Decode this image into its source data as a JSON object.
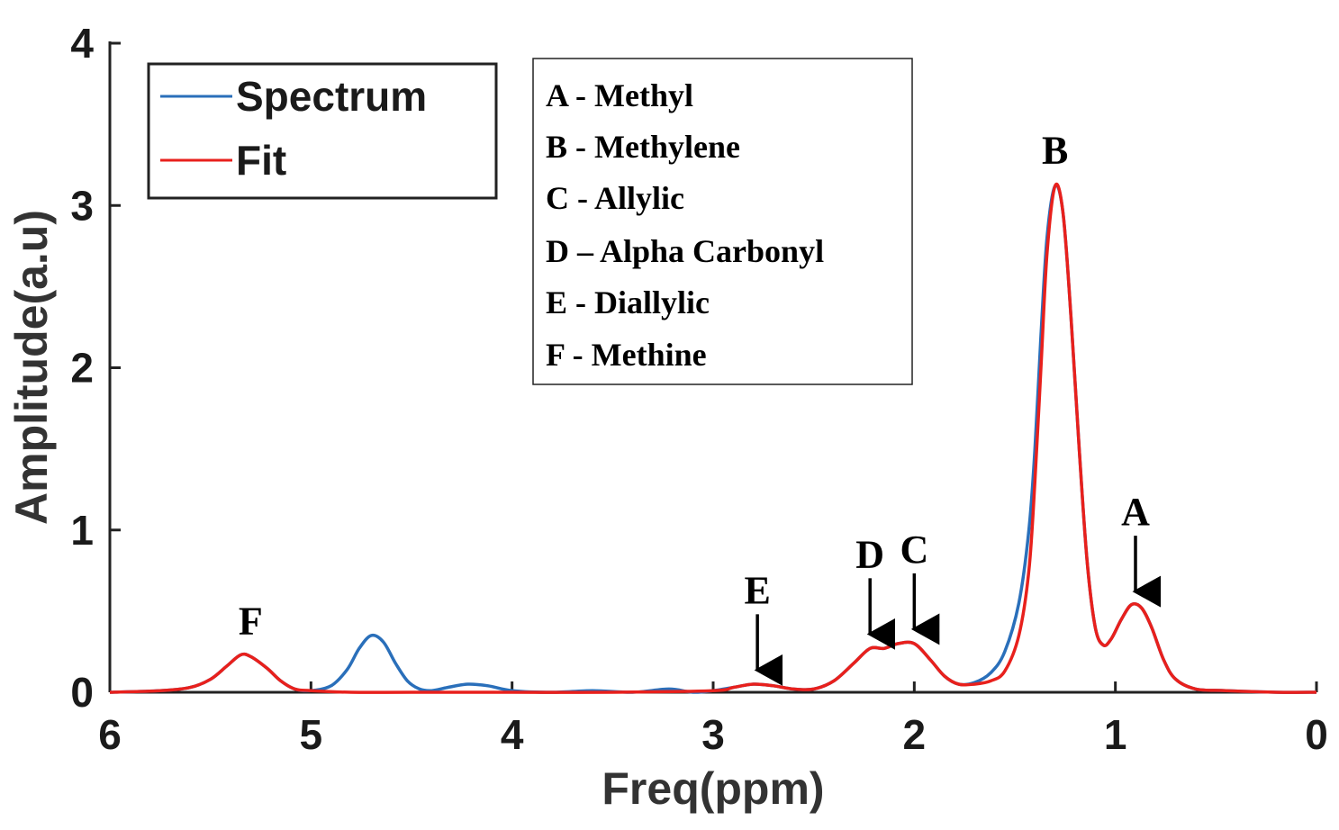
{
  "chart_data": {
    "type": "line",
    "xlabel": "Freq(ppm)",
    "ylabel": "Amplitude(a.u)",
    "xlim": [
      6,
      0
    ],
    "ylim": [
      0,
      4
    ],
    "x_reversed": true,
    "xticks": [
      "6",
      "5",
      "4",
      "3",
      "2",
      "1",
      "0"
    ],
    "yticks": [
      "0",
      "1",
      "2",
      "3",
      "4"
    ],
    "grid": false,
    "legend_position": "top-left",
    "series": [
      {
        "name": "Spectrum",
        "color": "#2a6fba",
        "points": [
          [
            6.0,
            0.0
          ],
          [
            5.75,
            0.01
          ],
          [
            5.6,
            0.03
          ],
          [
            5.5,
            0.08
          ],
          [
            5.42,
            0.16
          ],
          [
            5.35,
            0.23
          ],
          [
            5.3,
            0.22
          ],
          [
            5.22,
            0.15
          ],
          [
            5.15,
            0.07
          ],
          [
            5.08,
            0.02
          ],
          [
            5.0,
            0.01
          ],
          [
            4.9,
            0.04
          ],
          [
            4.82,
            0.14
          ],
          [
            4.76,
            0.27
          ],
          [
            4.7,
            0.35
          ],
          [
            4.64,
            0.31
          ],
          [
            4.58,
            0.18
          ],
          [
            4.52,
            0.07
          ],
          [
            4.46,
            0.02
          ],
          [
            4.4,
            0.01
          ],
          [
            4.32,
            0.03
          ],
          [
            4.22,
            0.05
          ],
          [
            4.12,
            0.04
          ],
          [
            4.0,
            0.01
          ],
          [
            3.8,
            0.0
          ],
          [
            3.6,
            0.01
          ],
          [
            3.4,
            0.0
          ],
          [
            3.22,
            0.02
          ],
          [
            3.1,
            0.0
          ],
          [
            3.0,
            0.01
          ],
          [
            2.9,
            0.03
          ],
          [
            2.8,
            0.05
          ],
          [
            2.7,
            0.04
          ],
          [
            2.6,
            0.02
          ],
          [
            2.5,
            0.02
          ],
          [
            2.4,
            0.07
          ],
          [
            2.3,
            0.18
          ],
          [
            2.22,
            0.27
          ],
          [
            2.15,
            0.27
          ],
          [
            2.08,
            0.3
          ],
          [
            2.0,
            0.3
          ],
          [
            1.92,
            0.2
          ],
          [
            1.85,
            0.1
          ],
          [
            1.78,
            0.05
          ],
          [
            1.7,
            0.06
          ],
          [
            1.62,
            0.12
          ],
          [
            1.55,
            0.25
          ],
          [
            1.48,
            0.55
          ],
          [
            1.43,
            1.0
          ],
          [
            1.4,
            1.5
          ],
          [
            1.37,
            2.2
          ],
          [
            1.34,
            2.8
          ],
          [
            1.3,
            3.12
          ],
          [
            1.26,
            2.95
          ],
          [
            1.22,
            2.3
          ],
          [
            1.18,
            1.5
          ],
          [
            1.14,
            0.8
          ],
          [
            1.1,
            0.4
          ],
          [
            1.06,
            0.29
          ],
          [
            1.02,
            0.33
          ],
          [
            0.97,
            0.45
          ],
          [
            0.92,
            0.54
          ],
          [
            0.87,
            0.52
          ],
          [
            0.82,
            0.4
          ],
          [
            0.76,
            0.2
          ],
          [
            0.7,
            0.08
          ],
          [
            0.6,
            0.02
          ],
          [
            0.45,
            0.01
          ],
          [
            0.2,
            0.0
          ],
          [
            0.0,
            0.0
          ]
        ]
      },
      {
        "name": "Fit",
        "color": "#e8201c",
        "points": [
          [
            6.0,
            0.0
          ],
          [
            5.75,
            0.01
          ],
          [
            5.6,
            0.03
          ],
          [
            5.5,
            0.08
          ],
          [
            5.42,
            0.16
          ],
          [
            5.35,
            0.23
          ],
          [
            5.3,
            0.22
          ],
          [
            5.22,
            0.15
          ],
          [
            5.15,
            0.07
          ],
          [
            5.08,
            0.02
          ],
          [
            5.0,
            0.01
          ],
          [
            4.8,
            0.0
          ],
          [
            4.5,
            0.0
          ],
          [
            4.0,
            0.0
          ],
          [
            3.5,
            0.0
          ],
          [
            3.0,
            0.01
          ],
          [
            2.9,
            0.03
          ],
          [
            2.8,
            0.05
          ],
          [
            2.7,
            0.04
          ],
          [
            2.6,
            0.02
          ],
          [
            2.5,
            0.02
          ],
          [
            2.4,
            0.07
          ],
          [
            2.3,
            0.18
          ],
          [
            2.22,
            0.27
          ],
          [
            2.15,
            0.27
          ],
          [
            2.08,
            0.3
          ],
          [
            2.0,
            0.3
          ],
          [
            1.92,
            0.2
          ],
          [
            1.85,
            0.1
          ],
          [
            1.78,
            0.05
          ],
          [
            1.7,
            0.05
          ],
          [
            1.62,
            0.07
          ],
          [
            1.55,
            0.13
          ],
          [
            1.48,
            0.35
          ],
          [
            1.43,
            0.75
          ],
          [
            1.4,
            1.3
          ],
          [
            1.37,
            2.0
          ],
          [
            1.34,
            2.7
          ],
          [
            1.3,
            3.12
          ],
          [
            1.26,
            2.95
          ],
          [
            1.22,
            2.3
          ],
          [
            1.18,
            1.5
          ],
          [
            1.14,
            0.8
          ],
          [
            1.1,
            0.4
          ],
          [
            1.06,
            0.29
          ],
          [
            1.02,
            0.33
          ],
          [
            0.97,
            0.45
          ],
          [
            0.92,
            0.54
          ],
          [
            0.87,
            0.52
          ],
          [
            0.82,
            0.4
          ],
          [
            0.76,
            0.2
          ],
          [
            0.7,
            0.08
          ],
          [
            0.6,
            0.02
          ],
          [
            0.45,
            0.01
          ],
          [
            0.2,
            0.0
          ],
          [
            0.0,
            0.0
          ]
        ]
      }
    ],
    "notes": [
      "A - Methyl",
      "B - Methylene",
      "C - Allylic",
      "D – Alpha Carbonyl",
      "E - Diallylic",
      "F - Methine"
    ],
    "peak_labels": [
      {
        "label": "F",
        "x": 5.3,
        "arrow": false
      },
      {
        "label": "E",
        "x": 2.78,
        "arrow": true
      },
      {
        "label": "D",
        "x": 2.22,
        "arrow": true
      },
      {
        "label": "C",
        "x": 2.0,
        "arrow": true
      },
      {
        "label": "B",
        "x": 1.3,
        "arrow": false
      },
      {
        "label": "A",
        "x": 0.9,
        "arrow": true
      }
    ]
  }
}
